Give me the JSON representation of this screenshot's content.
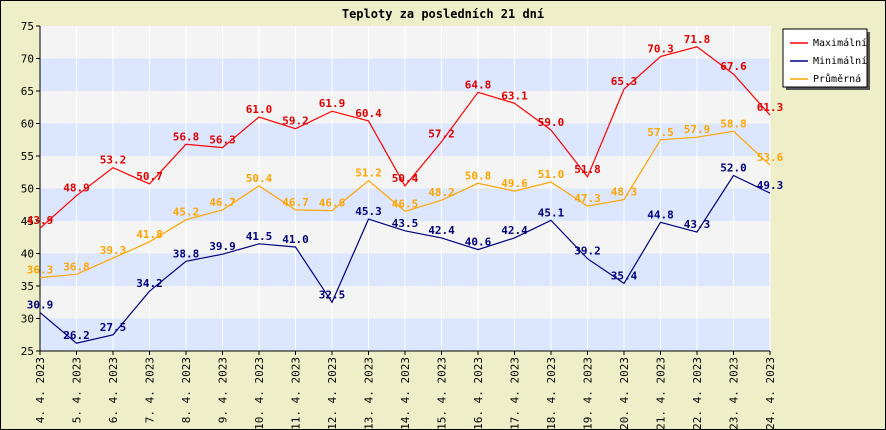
{
  "chart_data": {
    "type": "line",
    "title": "Teploty za posledních 21 dní",
    "categories": [
      "4. 4. 2023",
      "5. 4. 2023",
      "6. 4. 2023",
      "7. 4. 2023",
      "8. 4. 2023",
      "9. 4. 2023",
      "10. 4. 2023",
      "11. 4. 2023",
      "12. 4. 2023",
      "13. 4. 2023",
      "14. 4. 2023",
      "15. 4. 2023",
      "16. 4. 2023",
      "17. 4. 2023",
      "18. 4. 2023",
      "19. 4. 2023",
      "20. 4. 2023",
      "21. 4. 2023",
      "22. 4. 2023",
      "23. 4. 2023",
      "24. 4. 2023"
    ],
    "ylim": [
      25,
      75
    ],
    "yticks": [
      25,
      30,
      35,
      40,
      45,
      50,
      55,
      60,
      65,
      70,
      75
    ],
    "grid": true,
    "legend_position": "top-right",
    "series": [
      {
        "name": "Maximální",
        "color": "#ff0000",
        "label_color": "#e00000",
        "values": [
          43.9,
          48.9,
          53.2,
          50.7,
          56.8,
          56.3,
          61.0,
          59.2,
          61.9,
          60.4,
          50.4,
          57.2,
          64.8,
          63.1,
          59.0,
          51.8,
          65.3,
          70.3,
          71.8,
          67.6,
          61.3
        ],
        "labels": [
          "43.9",
          "48.9",
          "53.2",
          "50.7",
          "56.8",
          "56.3",
          "61.0",
          "59.2",
          "61.9",
          "60.4",
          "50.4",
          "57.2",
          "64.8",
          "63.1",
          "59.0",
          "51.8",
          "65.3",
          "70.3",
          "71.8",
          "67.6",
          "61.3"
        ]
      },
      {
        "name": "Minimální",
        "color": "#000080",
        "label_color": "#000080",
        "values": [
          30.9,
          26.2,
          27.5,
          34.2,
          38.8,
          39.9,
          41.5,
          41.0,
          32.5,
          45.3,
          43.5,
          42.4,
          40.6,
          42.4,
          45.1,
          39.2,
          35.4,
          44.8,
          43.3,
          52.0,
          49.3
        ],
        "labels": [
          "30.9",
          "26.2",
          "27.5",
          "34.2",
          "38.8",
          "39.9",
          "41.5",
          "41.0",
          "32.5",
          "45.3",
          "43.5",
          "42.4",
          "40.6",
          "42.4",
          "45.1",
          "39.2",
          "35.4",
          "44.8",
          "43.3",
          "52.0",
          "49.3"
        ]
      },
      {
        "name": "Průměrná",
        "color": "#ffa500",
        "label_color": "#ffa500",
        "values": [
          36.3,
          36.8,
          39.3,
          41.8,
          45.2,
          46.7,
          50.4,
          46.7,
          46.6,
          51.2,
          46.5,
          48.2,
          50.8,
          49.6,
          51.0,
          47.3,
          48.3,
          57.5,
          57.9,
          58.8,
          53.6
        ],
        "labels": [
          "36.3",
          "36.8",
          "39.3",
          "41.8",
          "45.2",
          "46.7",
          "50.4",
          "46.7",
          "46.6",
          "51.2",
          "46.5",
          "48.2",
          "50.8",
          "49.6",
          "51.0",
          "47.3",
          "48.3",
          "57.5",
          "57.9",
          "58.8",
          "53.6"
        ]
      }
    ]
  },
  "colors": {
    "background": "#eeeec8",
    "band_blue": "#dde6ff",
    "band_gray": "#f4f4f4"
  }
}
